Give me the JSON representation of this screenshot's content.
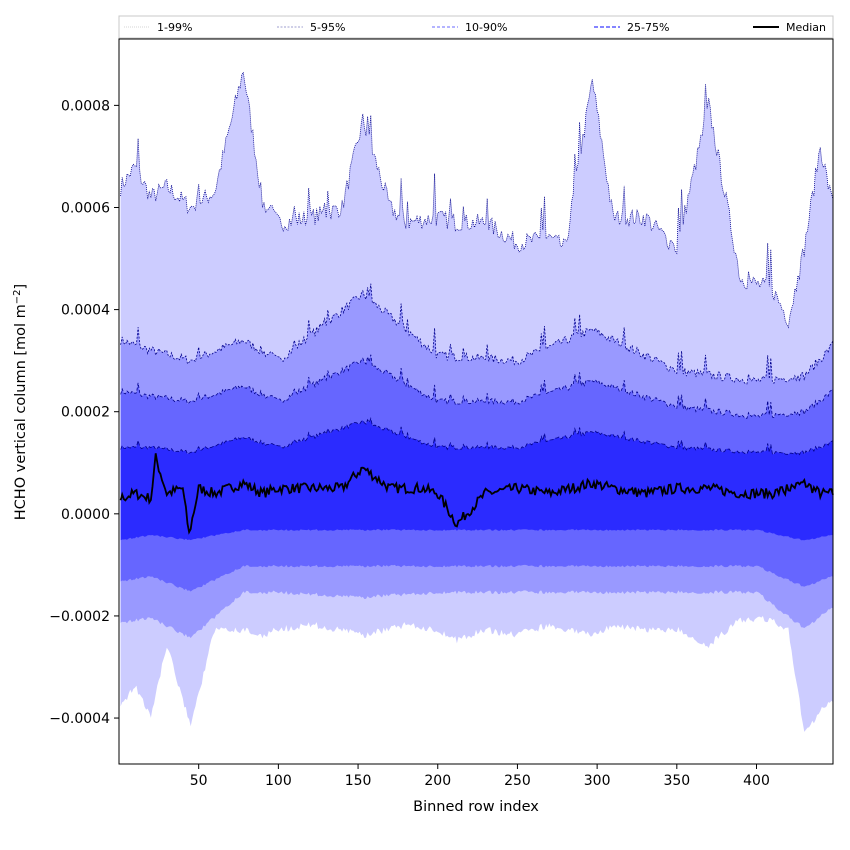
{
  "chart_data": {
    "type": "area",
    "xlabel": "Binned row index",
    "ylabel_text": "HCHO vertical column [mol m",
    "ylabel_exp": "−2",
    "ylabel_close": "]",
    "xlim": [
      0,
      448
    ],
    "ylim": [
      -0.00049,
      0.00093
    ],
    "x_ticks": [
      {
        "value": 50,
        "label": "50"
      },
      {
        "value": 100,
        "label": "100"
      },
      {
        "value": 150,
        "label": "150"
      },
      {
        "value": 200,
        "label": "200"
      },
      {
        "value": 250,
        "label": "250"
      },
      {
        "value": 300,
        "label": "300"
      },
      {
        "value": 350,
        "label": "350"
      },
      {
        "value": 400,
        "label": "400"
      }
    ],
    "y_ticks": [
      {
        "value": 0.0008,
        "label": "0.0008"
      },
      {
        "value": 0.0006,
        "label": "0.0006"
      },
      {
        "value": 0.0004,
        "label": "0.0004"
      },
      {
        "value": 0.0002,
        "label": "0.0002"
      },
      {
        "value": 0.0,
        "label": "0.0000"
      },
      {
        "value": -0.0002,
        "label": "−0.0002"
      },
      {
        "value": -0.0004,
        "label": "−0.0004"
      }
    ],
    "legend_position": "top (above plot)",
    "grid": false,
    "colors": {
      "band_1_99": "#ccccff",
      "band_5_95": "#9999ff",
      "band_10_90": "#6666ff",
      "band_25_75": "#2b2bff",
      "outline": "#00008b",
      "median": "#000000"
    },
    "series": [
      {
        "name": "1-99%",
        "x": [
          1,
          10,
          20,
          30,
          45,
          60,
          78,
          90,
          100,
          120,
          140,
          153,
          170,
          180,
          200,
          212,
          230,
          250,
          270,
          280,
          297,
          310,
          330,
          350,
          370,
          390,
          410,
          420,
          430,
          440,
          448
        ],
        "upper": [
          0.00064,
          0.00068,
          0.00062,
          0.00064,
          0.0006,
          0.00063,
          0.00087,
          0.00061,
          0.00057,
          0.00058,
          0.0006,
          0.00077,
          0.0006,
          0.00057,
          0.00058,
          0.00057,
          0.00057,
          0.00053,
          0.00054,
          0.00052,
          0.00085,
          0.00058,
          0.00058,
          0.00052,
          0.0008,
          0.00046,
          0.00044,
          0.00038,
          0.00052,
          0.00072,
          0.0006
        ],
        "lower": [
          -0.00037,
          -0.00033,
          -0.00039,
          -0.00025,
          -0.00041,
          -0.00022,
          -0.00022,
          -0.00023,
          -0.00022,
          -0.00021,
          -0.00022,
          -0.00023,
          -0.00022,
          -0.00021,
          -0.00022,
          -0.00024,
          -0.00022,
          -0.00023,
          -0.00021,
          -0.00022,
          -0.00023,
          -0.00021,
          -0.00022,
          -0.00022,
          -0.00025,
          -0.0002,
          -0.0002,
          -0.00022,
          -0.00042,
          -0.00038,
          -0.00036
        ]
      },
      {
        "name": "5-95%",
        "x": [
          1,
          20,
          45,
          78,
          100,
          153,
          200,
          250,
          297,
          350,
          400,
          430,
          448
        ],
        "upper": [
          0.00034,
          0.00032,
          0.0003,
          0.00034,
          0.0003,
          0.00043,
          0.00031,
          0.0003,
          0.00036,
          0.00028,
          0.00026,
          0.00027,
          0.00033
        ],
        "lower": [
          -0.00021,
          -0.0002,
          -0.00024,
          -0.00015,
          -0.00015,
          -0.00016,
          -0.00015,
          -0.00015,
          -0.00015,
          -0.00015,
          -0.00015,
          -0.00022,
          -0.00018
        ]
      },
      {
        "name": "10-90%",
        "x": [
          1,
          20,
          45,
          78,
          100,
          153,
          200,
          250,
          297,
          350,
          400,
          430,
          448
        ],
        "upper": [
          0.00024,
          0.00023,
          0.00022,
          0.00025,
          0.00022,
          0.0003,
          0.00022,
          0.00022,
          0.00026,
          0.00021,
          0.00019,
          0.0002,
          0.00024
        ],
        "lower": [
          -0.00013,
          -0.00012,
          -0.00015,
          -0.0001,
          -0.0001,
          -0.0001,
          -0.0001,
          -0.0001,
          -0.0001,
          -0.0001,
          -0.0001,
          -0.00014,
          -0.00012
        ]
      },
      {
        "name": "25-75%",
        "x": [
          1,
          20,
          45,
          78,
          100,
          153,
          200,
          250,
          297,
          350,
          400,
          430,
          448
        ],
        "upper": [
          0.00013,
          0.00013,
          0.00012,
          0.00015,
          0.00013,
          0.00018,
          0.00013,
          0.00013,
          0.00016,
          0.00013,
          0.00012,
          0.00012,
          0.00014
        ],
        "lower": [
          -5e-05,
          -4e-05,
          -5e-05,
          -3e-05,
          -3e-05,
          -3e-05,
          -3e-05,
          -3e-05,
          -3e-05,
          -3e-05,
          -3e-05,
          -5e-05,
          -4e-05
        ]
      },
      {
        "name": "Median",
        "x": [
          1,
          10,
          20,
          23,
          30,
          40,
          44,
          50,
          60,
          78,
          90,
          100,
          120,
          140,
          153,
          170,
          190,
          200,
          212,
          230,
          250,
          270,
          297,
          310,
          330,
          350,
          370,
          390,
          410,
          430,
          440,
          448
        ],
        "values": [
          3e-05,
          4e-05,
          3e-05,
          0.00011,
          4e-05,
          5e-05,
          -4e-05,
          5e-05,
          4e-05,
          6e-05,
          4e-05,
          5e-05,
          5e-05,
          5e-05,
          9e-05,
          5e-05,
          5e-05,
          4e-05,
          -2e-05,
          4e-05,
          5e-05,
          4e-05,
          6e-05,
          5e-05,
          4e-05,
          5e-05,
          5e-05,
          4e-05,
          4e-05,
          6e-05,
          4e-05,
          4e-05
        ]
      }
    ]
  }
}
